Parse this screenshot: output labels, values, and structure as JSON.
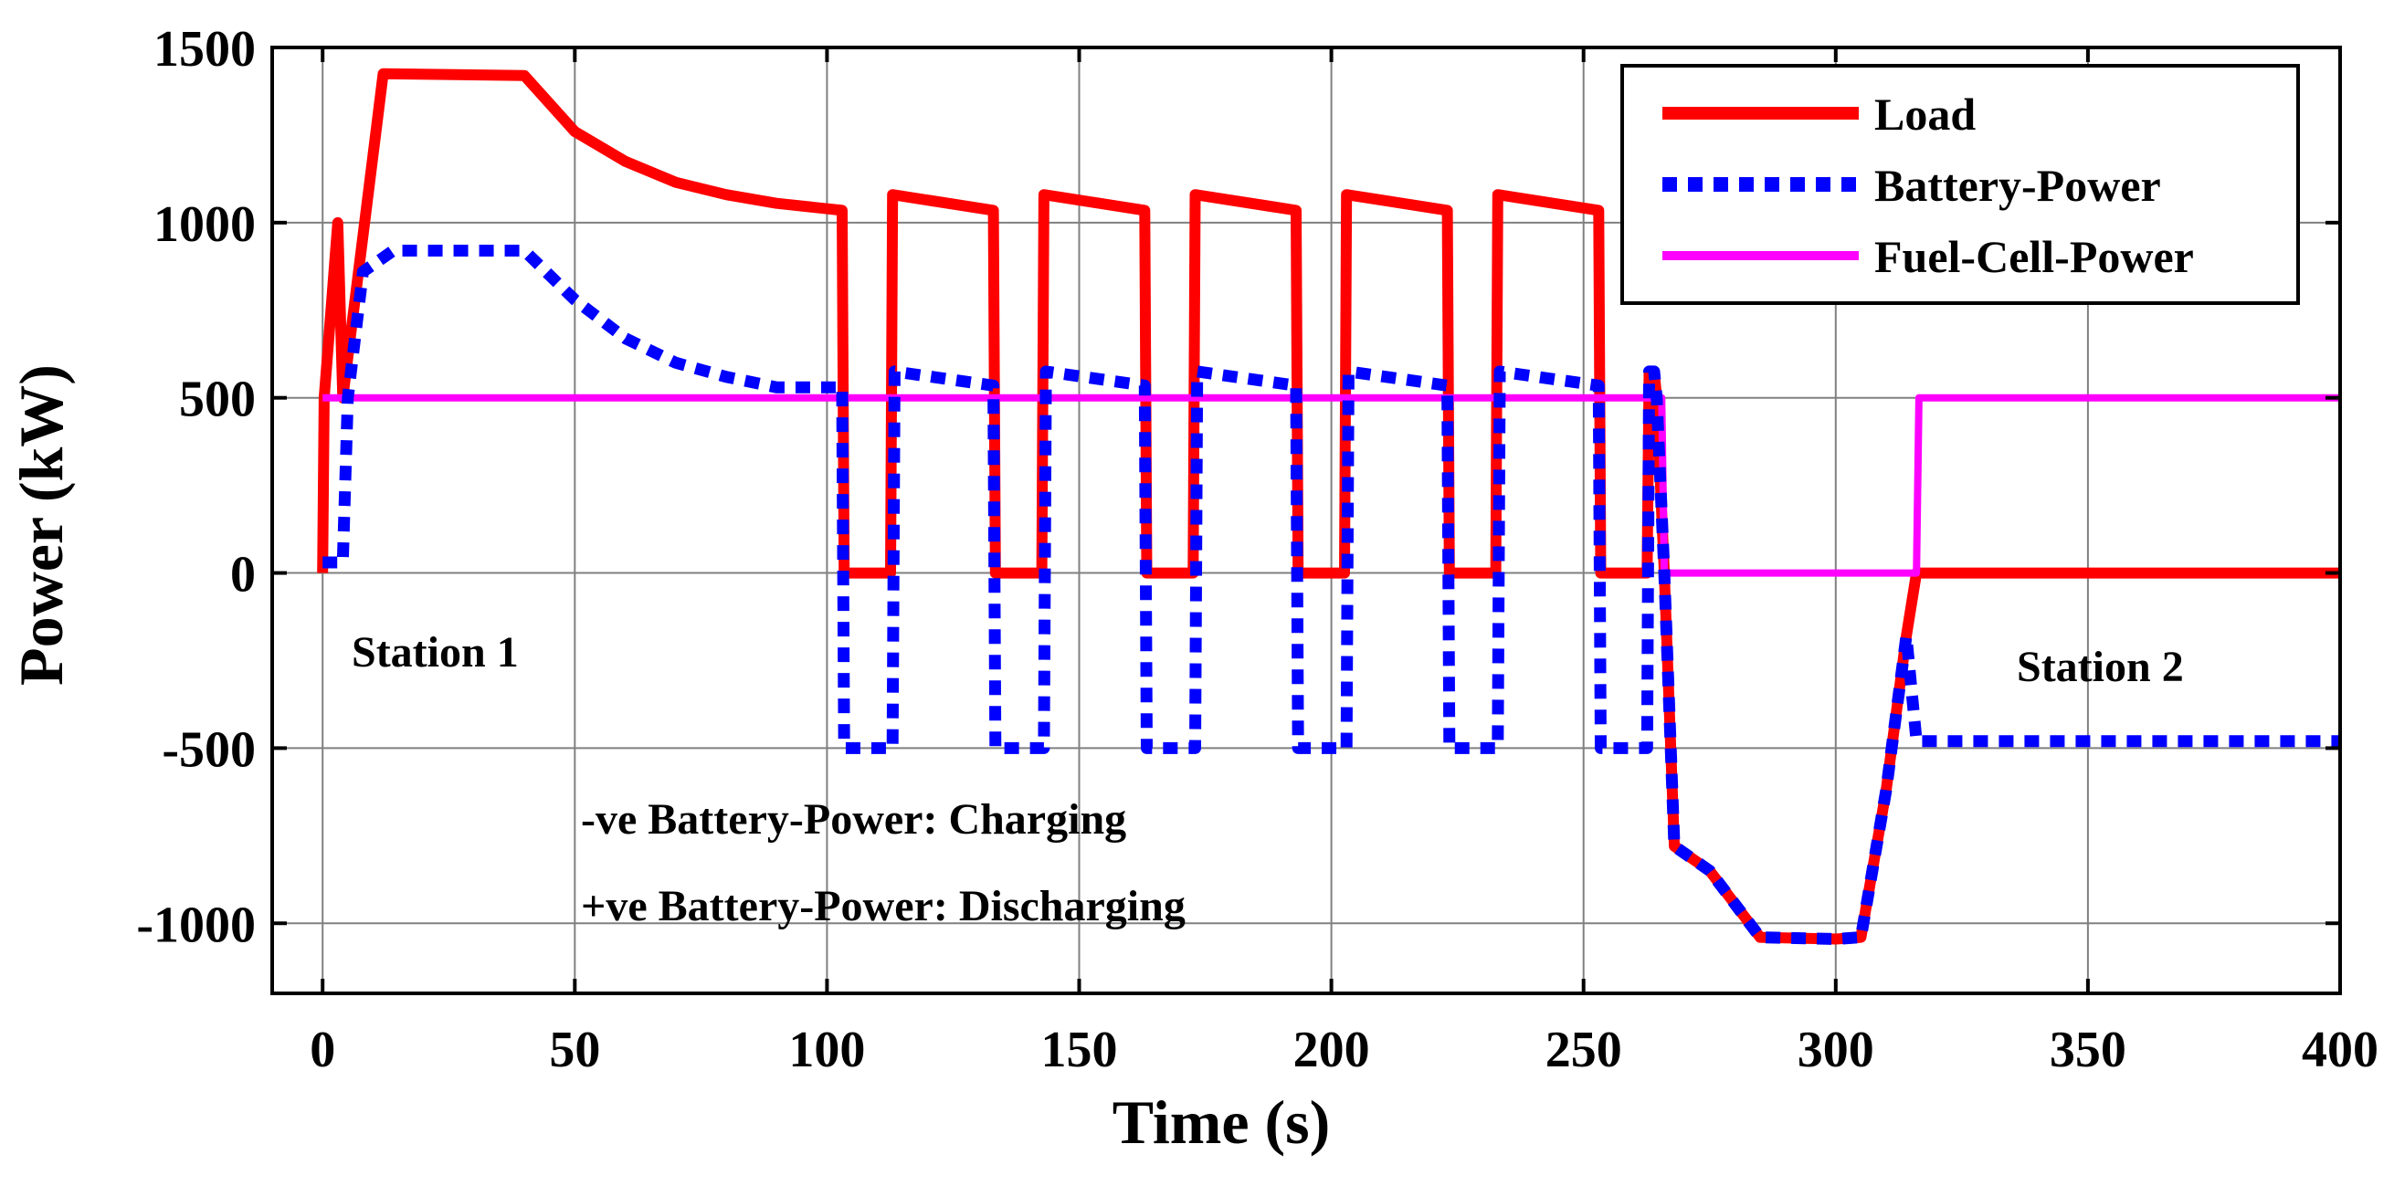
{
  "chart_data": {
    "type": "line",
    "title": "",
    "xlabel": "Time (s)",
    "ylabel": "Power (kW)",
    "xlim": [
      -10,
      400
    ],
    "ylim": [
      -1200,
      1500
    ],
    "xticks": [
      0,
      50,
      100,
      150,
      200,
      250,
      300,
      350,
      400
    ],
    "yticks": [
      -1000,
      -500,
      0,
      500,
      1000,
      1500
    ],
    "xtick_labels": [
      "0",
      "50",
      "100",
      "150",
      "200",
      "250",
      "300",
      "350",
      "400"
    ],
    "ytick_labels": [
      "-1000",
      "-500",
      "0",
      "500",
      "1000",
      "1500"
    ],
    "grid": true,
    "legend_position": "top-right",
    "series": [
      {
        "name": "Load",
        "color": "#ff0000",
        "style": "solid",
        "x": [
          0,
          0.3,
          3,
          4,
          12,
          40,
          50,
          60,
          70,
          80,
          90,
          103,
          103.4,
          112.6,
          113,
          133,
          133.4,
          142.6,
          143,
          163,
          163.4,
          172.6,
          173,
          193,
          193.4,
          202.6,
          203,
          223,
          223.4,
          232.6,
          233,
          253,
          253.4,
          262.6,
          263,
          264,
          264.5,
          266,
          268,
          275,
          285,
          300,
          305,
          310,
          314,
          316,
          400
        ],
        "y": [
          0,
          500,
          1000,
          500,
          1425,
          1420,
          1260,
          1175,
          1115,
          1080,
          1055,
          1035,
          0,
          0,
          1080,
          1035,
          0,
          0,
          1080,
          1035,
          0,
          0,
          1080,
          1035,
          0,
          0,
          1080,
          1035,
          0,
          0,
          1080,
          1035,
          0,
          0,
          575,
          575,
          500,
          0,
          -780,
          -850,
          -1040,
          -1045,
          -1040,
          -620,
          -180,
          0,
          0
        ]
      },
      {
        "name": "Battery-Power",
        "color": "#0000ff",
        "style": "dotted",
        "x": [
          0,
          2,
          4,
          5,
          8,
          14,
          40,
          50,
          60,
          70,
          80,
          90,
          103,
          103.4,
          113,
          113.4,
          133,
          133.4,
          143,
          143.4,
          163,
          163.4,
          173,
          173.4,
          193,
          193.4,
          203,
          203.4,
          223,
          223.4,
          233,
          233.4,
          253,
          253.4,
          262.6,
          263,
          264,
          264.5,
          266,
          268,
          275,
          285,
          300,
          305,
          310,
          314,
          316,
          400
        ],
        "y": [
          30,
          30,
          30,
          500,
          860,
          920,
          920,
          780,
          670,
          600,
          560,
          530,
          530,
          -500,
          -500,
          575,
          535,
          -500,
          -500,
          575,
          535,
          -500,
          -500,
          575,
          535,
          -500,
          -500,
          575,
          535,
          -500,
          -500,
          575,
          535,
          -500,
          -500,
          575,
          575,
          500,
          0,
          -780,
          -850,
          -1040,
          -1045,
          -1040,
          -620,
          -180,
          -480,
          -480
        ]
      },
      {
        "name": "Fuel-Cell-Power",
        "color": "#ff00ff",
        "style": "solid",
        "x": [
          0,
          265.5,
          266,
          316,
          316.5,
          400
        ],
        "y": [
          500,
          500,
          0,
          0,
          500,
          500
        ]
      }
    ],
    "annotations": [
      "Station 1",
      "Station 2",
      "-ve Battery-Power: Charging",
      "+ve Battery-Power: Discharging"
    ]
  }
}
